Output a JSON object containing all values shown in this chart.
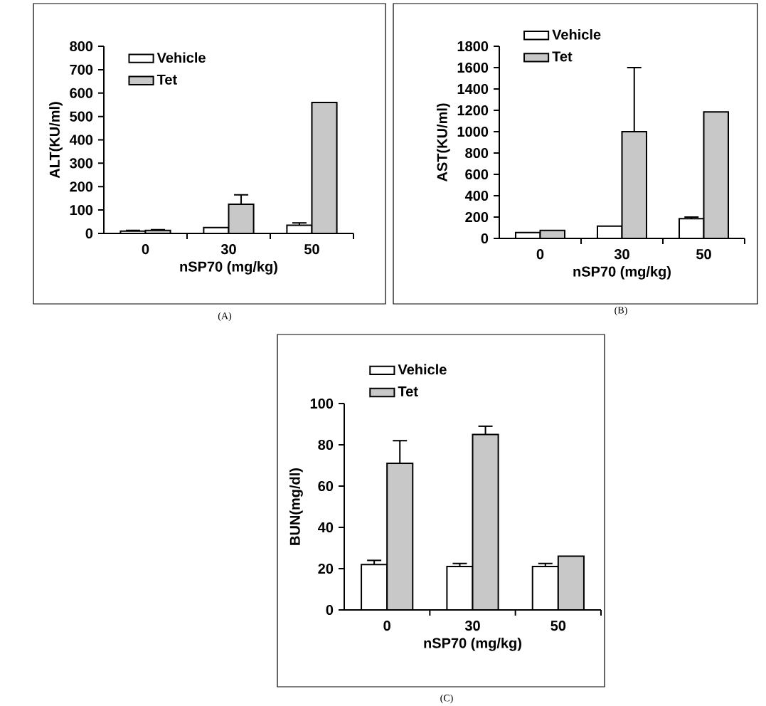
{
  "chart_data": [
    {
      "type": "bar",
      "categories": [
        "0",
        "30",
        "50"
      ],
      "xlabel": "nSP70 (mg/kg)",
      "ylabel": "ALT(KU/ml)",
      "ylim": [
        0,
        800
      ],
      "yticks": [
        0,
        100,
        200,
        300,
        400,
        500,
        600,
        700,
        800
      ],
      "legend": "top left",
      "annotations": [
        "(A)"
      ],
      "series": [
        {
          "name": "Vehicle",
          "color": "#ffffff",
          "values": [
            10,
            25,
            35
          ],
          "errors": [
            3,
            null,
            10
          ]
        },
        {
          "name": "Tet",
          "color": "#c8c8c8",
          "values": [
            13,
            125,
            560
          ],
          "errors": [
            3,
            40,
            null
          ]
        }
      ]
    },
    {
      "type": "bar",
      "categories": [
        "0",
        "30",
        "50"
      ],
      "xlabel": "nSP70 (mg/kg)",
      "ylabel": "AST(KU/ml)",
      "ylim": [
        0,
        1800
      ],
      "yticks": [
        0,
        200,
        400,
        600,
        800,
        1000,
        1200,
        1400,
        1600,
        1800
      ],
      "legend": "top left",
      "annotations": [
        "(B)"
      ],
      "series": [
        {
          "name": "Vehicle",
          "color": "#ffffff",
          "values": [
            55,
            115,
            185
          ],
          "errors": [
            null,
            null,
            15
          ]
        },
        {
          "name": "Tet",
          "color": "#c8c8c8",
          "values": [
            75,
            1000,
            1185
          ],
          "errors": [
            null,
            600,
            null
          ]
        }
      ]
    },
    {
      "type": "bar",
      "categories": [
        "0",
        "30",
        "50"
      ],
      "xlabel": "nSP70 (mg/kg)",
      "ylabel": "BUN(mg/dl)",
      "ylim": [
        0,
        100
      ],
      "yticks": [
        0,
        20,
        40,
        60,
        80,
        100
      ],
      "legend": "top left",
      "annotations": [
        "(C)"
      ],
      "series": [
        {
          "name": "Vehicle",
          "color": "#ffffff",
          "values": [
            22,
            21,
            21
          ],
          "errors": [
            2,
            1.5,
            1.5
          ]
        },
        {
          "name": "Tet",
          "color": "#c8c8c8",
          "values": [
            71,
            85,
            26
          ],
          "errors": [
            11,
            4,
            null
          ]
        }
      ]
    }
  ]
}
